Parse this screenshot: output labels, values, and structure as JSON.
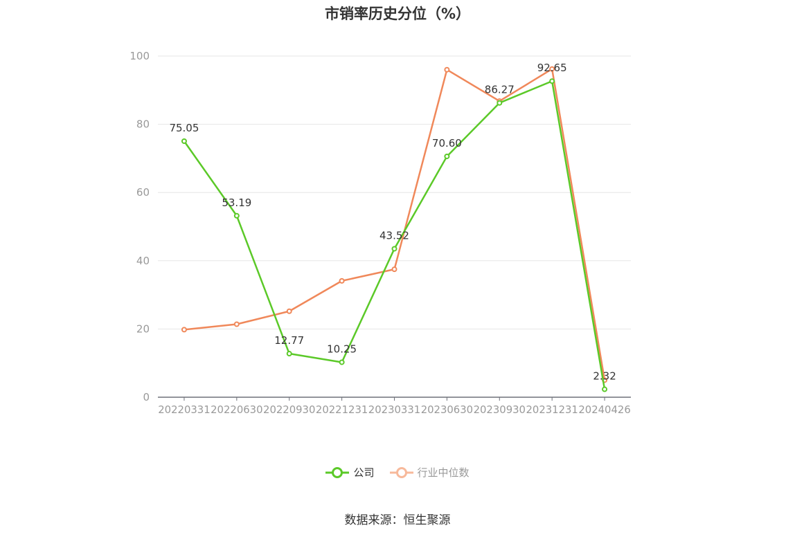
{
  "title": "市销率历史分位（%）",
  "source": "数据来源：恒生聚源",
  "colors": {
    "company": "#5bc928",
    "industry": "#f0885a",
    "industry_legend": "#f7b99b"
  },
  "chart_data": {
    "type": "line",
    "title": "市销率历史分位（%）",
    "categories": [
      "20220331",
      "20220630",
      "20220930",
      "20221231",
      "20230331",
      "20230630",
      "20230930",
      "20231231",
      "20240426"
    ],
    "ylim": [
      0,
      100
    ],
    "yticks": [
      0,
      20,
      40,
      60,
      80,
      100
    ],
    "grid": true,
    "legend_position": "bottom",
    "series": [
      {
        "name": "公司",
        "values": [
          75.05,
          53.19,
          12.77,
          10.25,
          43.52,
          70.6,
          86.27,
          92.65,
          2.32
        ],
        "labels": [
          "75.05",
          "53.19",
          "12.77",
          "10.25",
          "43.52",
          "70.60",
          "86.27",
          "92.65",
          "2.32"
        ]
      },
      {
        "name": "行业中位数",
        "values": [
          19.8,
          21.4,
          25.2,
          34.1,
          37.5,
          96.0,
          86.8,
          96.2,
          5.0
        ]
      }
    ]
  }
}
